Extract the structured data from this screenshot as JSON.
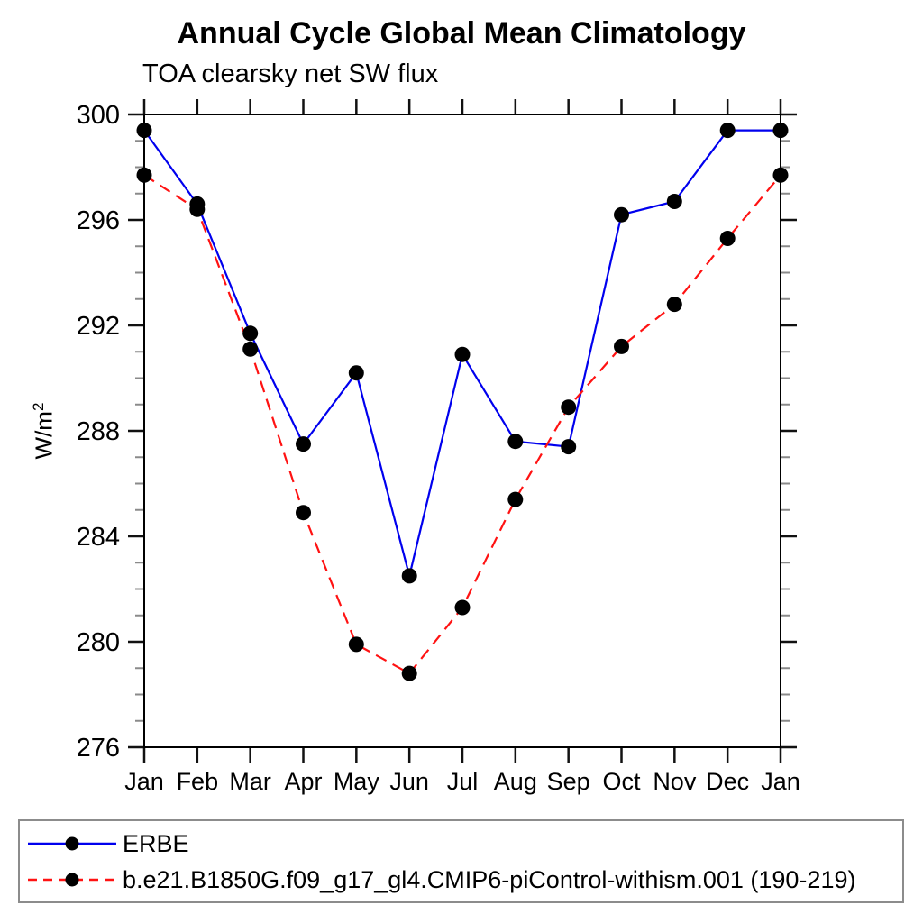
{
  "header": {
    "title": "Annual Cycle Global Mean Climatology",
    "subtitle": "TOA clearsky net SW flux"
  },
  "y_axis_label": {
    "base": "W/m",
    "exponent": "2"
  },
  "chart_data": {
    "type": "line",
    "title": "Annual Cycle Global Mean Climatology",
    "subtitle": "TOA clearsky net SW flux",
    "xlabel": "",
    "ylabel": "W/m^2",
    "x_categories": [
      "Jan",
      "Feb",
      "Mar",
      "Apr",
      "May",
      "Jun",
      "Jul",
      "Aug",
      "Sep",
      "Oct",
      "Nov",
      "Dec",
      "Jan"
    ],
    "ylim": [
      276,
      300
    ],
    "y_ticks": [
      276,
      280,
      284,
      288,
      292,
      296,
      300
    ],
    "y_minor_tick_step": 1,
    "grid": false,
    "axis_frame": true,
    "legend_position": "bottom-left-box",
    "marker": {
      "shape": "circle",
      "color": "#000000",
      "radius": 8.5
    },
    "series": [
      {
        "name": "ERBE",
        "color": "#0000ee",
        "style": "solid",
        "values": [
          299.4,
          296.6,
          291.7,
          287.5,
          290.2,
          282.5,
          290.9,
          287.6,
          287.4,
          296.2,
          296.7,
          299.4,
          299.4
        ]
      },
      {
        "name": "b.e21.B1850G.f09_g17_gl4.CMIP6-piControl-withism.001 (190-219)",
        "color": "#ff1212",
        "style": "dashed",
        "values": [
          297.7,
          296.4,
          291.1,
          284.9,
          279.9,
          278.8,
          281.3,
          285.4,
          288.9,
          291.2,
          292.8,
          295.3,
          297.7
        ]
      }
    ],
    "tick_colors": {
      "major": "#111111",
      "minor": "#8a8a8a"
    }
  }
}
